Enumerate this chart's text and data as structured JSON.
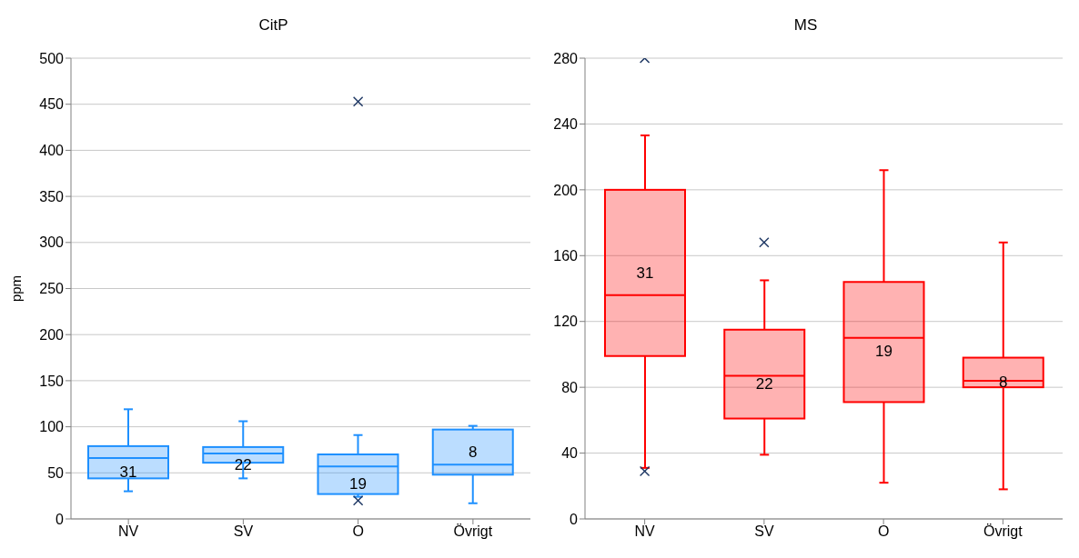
{
  "chart_data": [
    {
      "type": "box",
      "title": "CitP",
      "ylabel": "ppm",
      "categories": [
        "NV",
        "SV",
        "O",
        "Övrigt"
      ],
      "ylim": [
        0,
        500
      ],
      "yticks": [
        0,
        50,
        100,
        150,
        200,
        250,
        300,
        350,
        400,
        450,
        500
      ],
      "grid": "y",
      "marker": "cross",
      "series": [
        {
          "color": "#1e90ff",
          "boxes": [
            {
              "low": 30,
              "q1": 44,
              "median": 66,
              "q3": 79,
              "high": 119
            },
            {
              "low": 44,
              "q1": 61,
              "median": 71,
              "q3": 78,
              "high": 106
            },
            {
              "low": 24,
              "q1": 27,
              "median": 57,
              "q3": 70,
              "high": 91,
              "outliers": [
                453,
                20
              ]
            },
            {
              "low": 17,
              "q1": 48,
              "median": 59,
              "q3": 97,
              "high": 101
            }
          ]
        }
      ],
      "annotations": [
        "31",
        "22",
        "19",
        "8"
      ]
    },
    {
      "type": "box",
      "title": "MS",
      "categories": [
        "NV",
        "SV",
        "O",
        "Övrigt"
      ],
      "ylim": [
        0,
        280
      ],
      "yticks": [
        0,
        40,
        80,
        120,
        160,
        200,
        240,
        280
      ],
      "grid": "y",
      "marker": "cross",
      "series": [
        {
          "color": "#ff0000",
          "boxes": [
            {
              "low": 31,
              "q1": 99,
              "median": 136,
              "q3": 200,
              "high": 233,
              "outliers": [
                280,
                29
              ]
            },
            {
              "low": 39,
              "q1": 61,
              "median": 87,
              "q3": 115,
              "high": 145,
              "outliers": [
                168
              ]
            },
            {
              "low": 22,
              "q1": 71,
              "median": 110,
              "q3": 144,
              "high": 212
            },
            {
              "low": 18,
              "q1": 80,
              "median": 84,
              "q3": 98,
              "high": 168
            }
          ]
        }
      ],
      "annotations": [
        "31",
        "22",
        "19",
        "8"
      ]
    }
  ]
}
